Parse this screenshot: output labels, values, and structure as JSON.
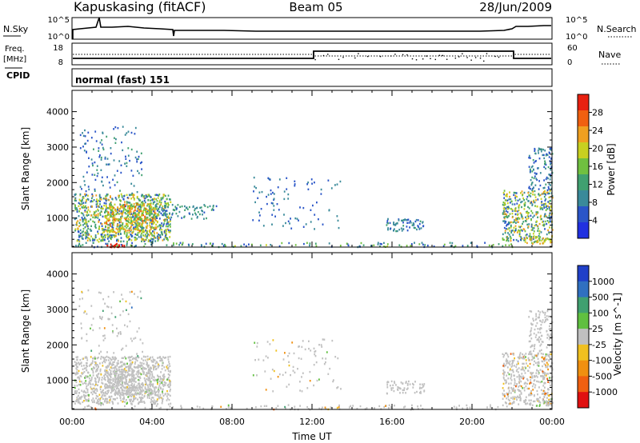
{
  "header": {
    "station": "Kapuskasing (fitACF)",
    "beam": "Beam 05",
    "date": "28/Jun/2009"
  },
  "strip_nsky": {
    "left_label": "N.Sky",
    "left_ticks": [
      "10^5",
      "10^0"
    ],
    "right_ticks": [
      "10^5",
      "10^0"
    ],
    "right_label": "N.Search"
  },
  "strip_freq": {
    "left_label_top": "Freq.",
    "left_label_unit": "[MHz]",
    "left_ticks": [
      "18",
      "8"
    ],
    "right_ticks": [
      "60",
      "0"
    ],
    "right_label": "Nave"
  },
  "cpid": {
    "label": "CPID",
    "value": "normal (fast) 151"
  },
  "chart_data": [
    {
      "type": "heatmap",
      "title": "",
      "xlabel": "",
      "ylabel": "Slant Range [km]",
      "x_range_hours": [
        0,
        24
      ],
      "ylim": [
        180,
        4600
      ],
      "y_ticks": [
        "1000",
        "2000",
        "3000",
        "4000"
      ],
      "colorbar": {
        "label": "Power [dB]",
        "ticks": [
          "4",
          "8",
          "12",
          "16",
          "20",
          "24",
          "28"
        ],
        "colors": [
          "#2030e0",
          "#2a55c8",
          "#3a8a9a",
          "#40a070",
          "#70c040",
          "#c8d020",
          "#f0a020",
          "#f06010",
          "#e82010"
        ],
        "range": [
          0,
          32
        ]
      },
      "scatter_regions": [
        {
          "t": [
            0.1,
            4.9
          ],
          "r": [
            350,
            1700
          ],
          "level": [
            4,
            24
          ],
          "density": 0.55
        },
        {
          "t": [
            1.6,
            4.2
          ],
          "r": [
            600,
            1450
          ],
          "level": [
            14,
            26
          ],
          "density": 0.5
        },
        {
          "t": [
            1.7,
            2.6
          ],
          "r": [
            200,
            300
          ],
          "level": [
            28,
            32
          ],
          "density": 0.9
        },
        {
          "t": [
            4.0,
            7.2
          ],
          "r": [
            1000,
            1400
          ],
          "level": [
            6,
            14
          ],
          "density": 0.25
        },
        {
          "t": [
            0.1,
            22.0
          ],
          "r": [
            200,
            330
          ],
          "level": [
            4,
            18
          ],
          "density": 0.18
        },
        {
          "t": [
            15.7,
            17.6
          ],
          "r": [
            650,
            1000
          ],
          "level": [
            4,
            12
          ],
          "density": 0.4
        },
        {
          "t": [
            21.5,
            24.0
          ],
          "r": [
            350,
            1800
          ],
          "level": [
            4,
            24
          ],
          "density": 0.45
        },
        {
          "t": [
            22.6,
            24.0
          ],
          "r": [
            300,
            500
          ],
          "level": [
            14,
            24
          ],
          "density": 0.5
        },
        {
          "t": [
            22.8,
            24.0
          ],
          "r": [
            1800,
            3000
          ],
          "level": [
            4,
            12
          ],
          "density": 0.3
        },
        {
          "t": [
            0.3,
            3.5
          ],
          "r": [
            1700,
            3600
          ],
          "level": [
            4,
            12
          ],
          "density": 0.08
        },
        {
          "t": [
            9.0,
            13.5
          ],
          "r": [
            700,
            2200
          ],
          "level": [
            4,
            10
          ],
          "density": 0.05
        }
      ]
    },
    {
      "type": "heatmap",
      "title": "",
      "xlabel": "Time UT",
      "ylabel": "Slant Range [km]",
      "x_range_hours": [
        0,
        24
      ],
      "x_ticks": [
        "00:00",
        "04:00",
        "08:00",
        "12:00",
        "16:00",
        "20:00",
        "00:00"
      ],
      "ylim": [
        180,
        4600
      ],
      "y_ticks": [
        "1000",
        "2000",
        "3000",
        "4000"
      ],
      "colorbar": {
        "label": "Velocity [m s^-1]",
        "ticks": [
          "1000",
          "500",
          "100",
          "25",
          "-25",
          "-100",
          "-500",
          "-1000"
        ],
        "colors": [
          "#2040c8",
          "#3070c0",
          "#40a070",
          "#60c040",
          "#c0c0c0",
          "#f0c020",
          "#f09010",
          "#f06010",
          "#e01010"
        ]
      },
      "scatter_regions": [
        {
          "t": [
            0.1,
            4.9
          ],
          "r": [
            350,
            1700
          ],
          "level": [
            3,
            5
          ],
          "density": 0.55
        },
        {
          "t": [
            1.6,
            4.2
          ],
          "r": [
            600,
            1450
          ],
          "level": [
            4,
            4
          ],
          "density": 0.5
        },
        {
          "t": [
            0.1,
            22.0
          ],
          "r": [
            200,
            330
          ],
          "level": [
            2,
            7
          ],
          "density": 0.15
        },
        {
          "t": [
            15.7,
            17.6
          ],
          "r": [
            650,
            1000
          ],
          "level": [
            4,
            4
          ],
          "density": 0.35
        },
        {
          "t": [
            21.5,
            24.0
          ],
          "r": [
            350,
            1800
          ],
          "level": [
            3,
            7
          ],
          "density": 0.45
        },
        {
          "t": [
            22.6,
            24.0
          ],
          "r": [
            300,
            500
          ],
          "level": [
            3,
            5
          ],
          "density": 0.5
        },
        {
          "t": [
            22.8,
            24.0
          ],
          "r": [
            1800,
            3000
          ],
          "level": [
            4,
            4
          ],
          "density": 0.3
        },
        {
          "t": [
            0.3,
            3.5
          ],
          "r": [
            1700,
            3600
          ],
          "level": [
            1,
            7
          ],
          "density": 0.06
        },
        {
          "t": [
            9.0,
            13.5
          ],
          "r": [
            700,
            2200
          ],
          "level": [
            3,
            6
          ],
          "density": 0.05
        }
      ]
    }
  ]
}
